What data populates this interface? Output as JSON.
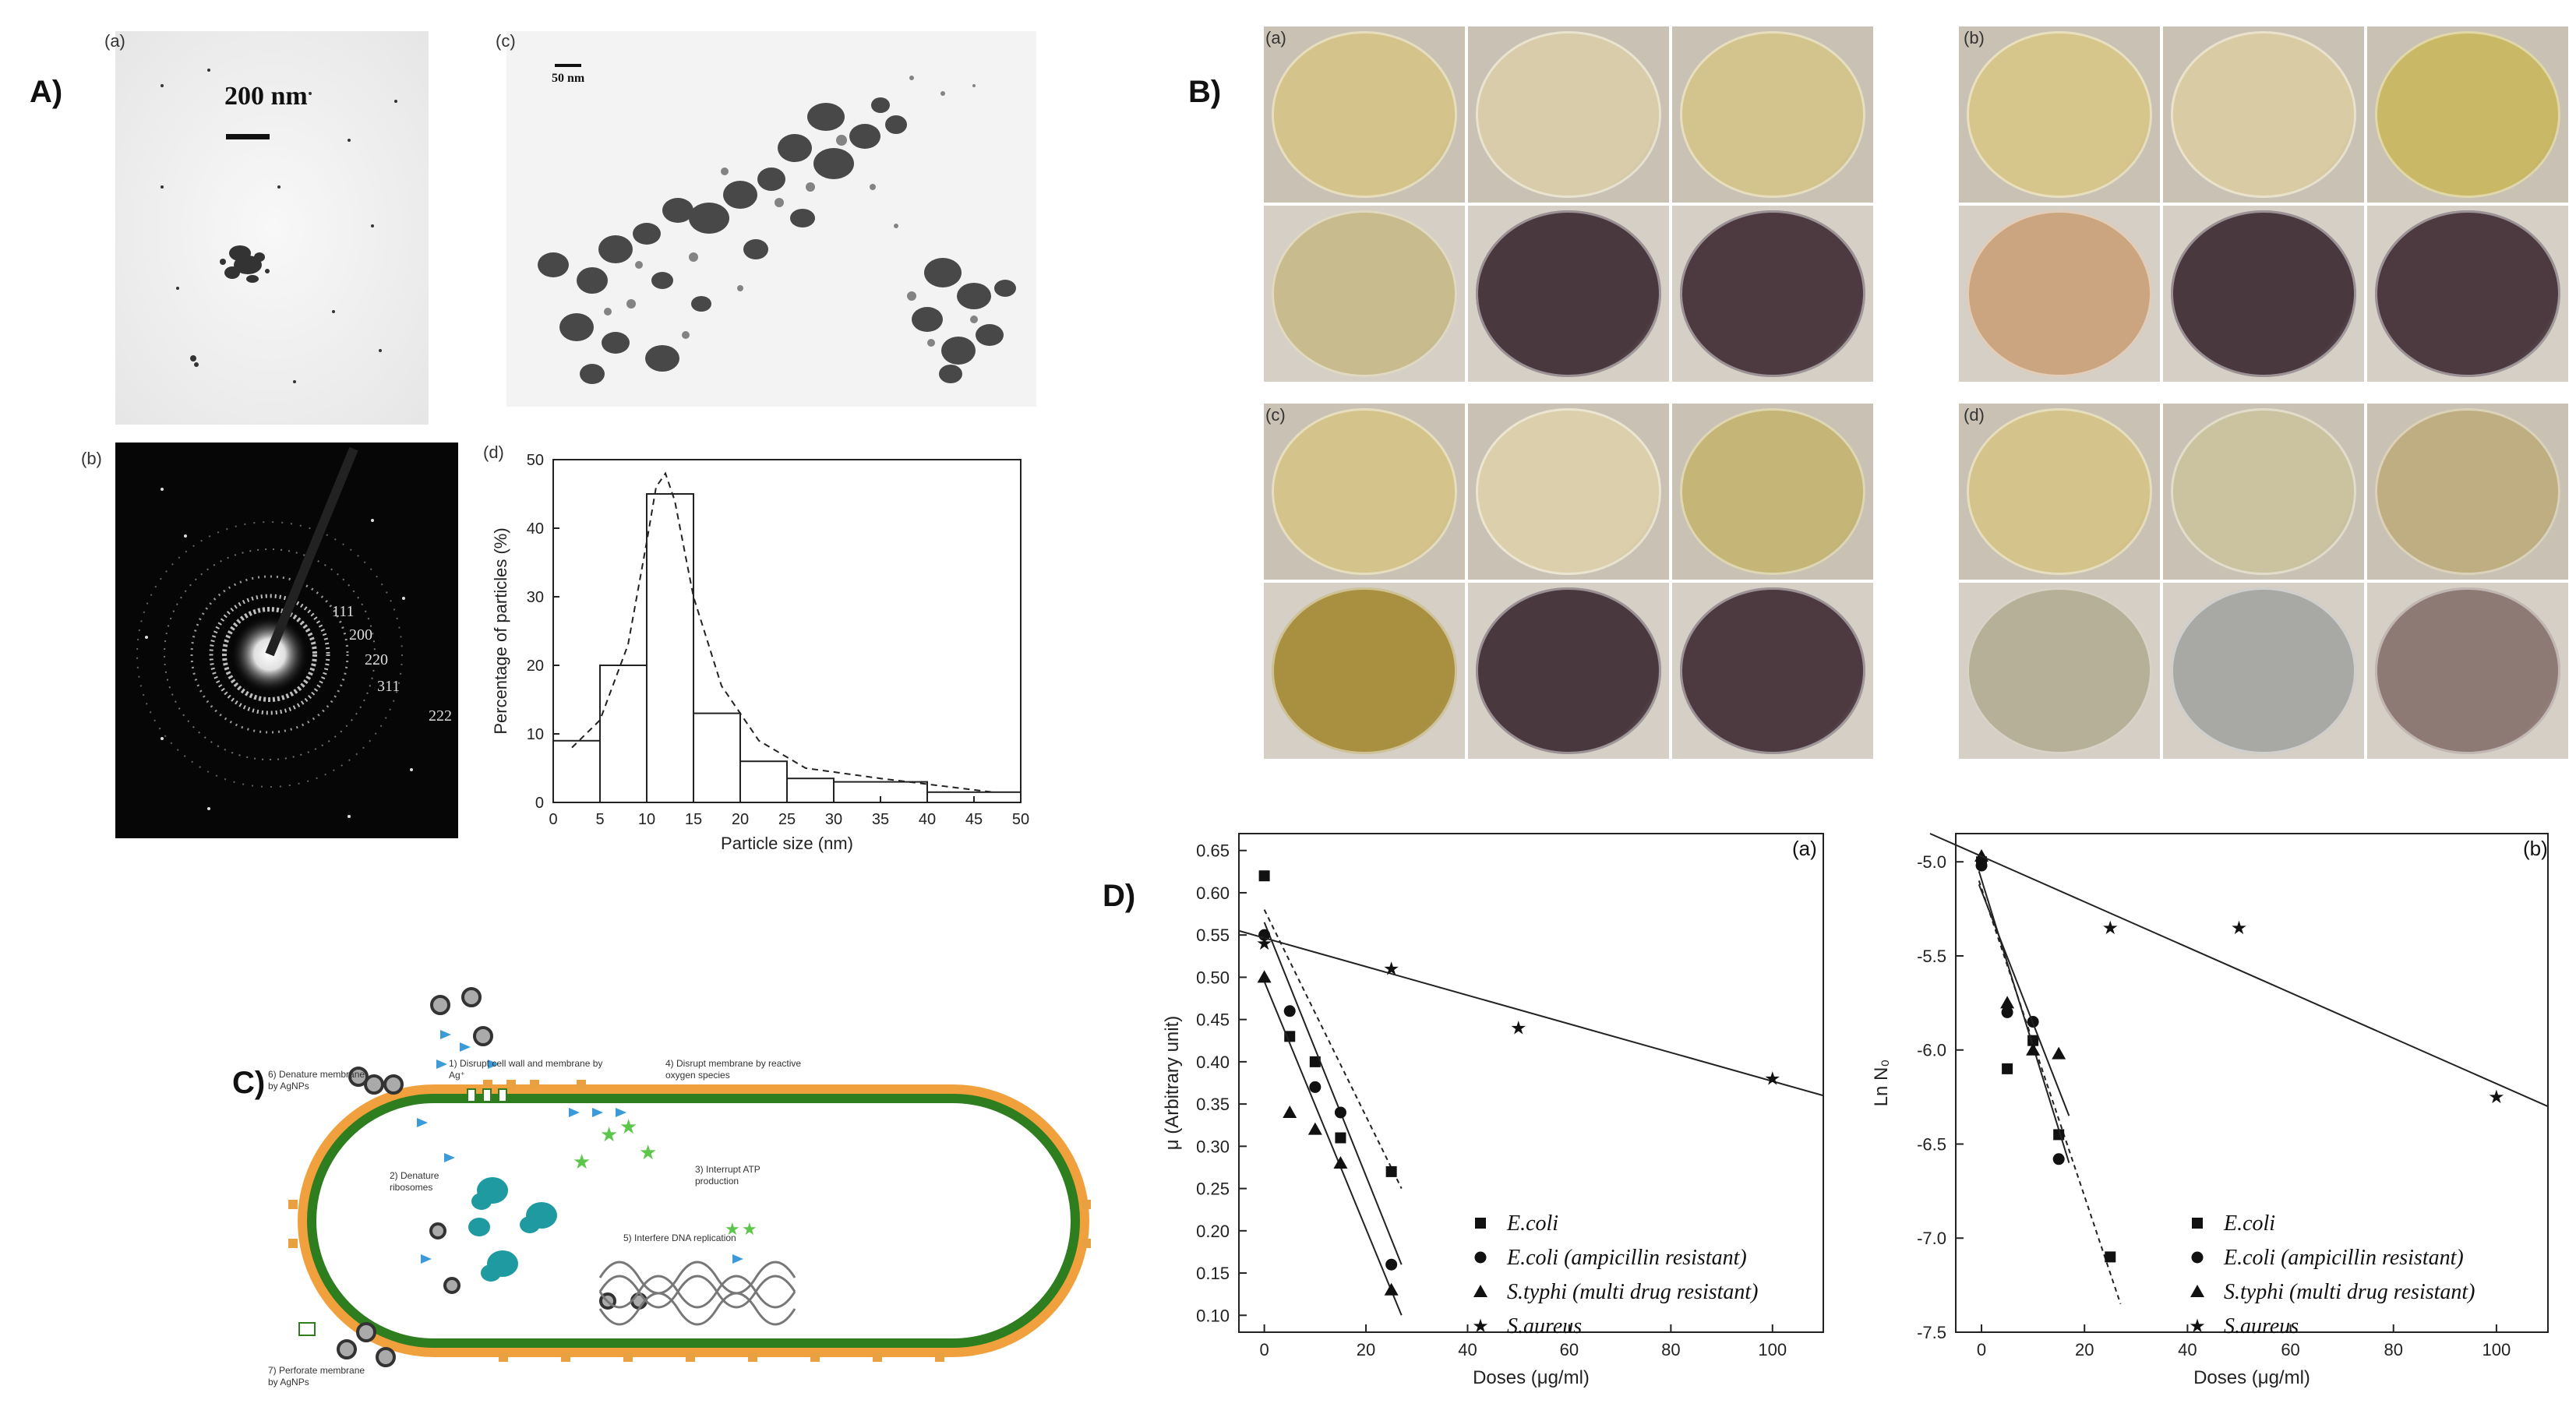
{
  "panels": {
    "A": {
      "letter": "A)",
      "a": {
        "label": "(a)",
        "scalebar": "200 nm"
      },
      "b": {
        "label": "(b)",
        "rings": [
          "111",
          "200",
          "220",
          "311",
          "222"
        ]
      },
      "c": {
        "label": "(c)",
        "scalebar": "50 nm"
      },
      "d": {
        "label": "(d)"
      }
    },
    "B": {
      "letter": "B)",
      "groups": [
        "(a)",
        "(b)",
        "(c)",
        "(d)"
      ]
    },
    "C": {
      "letter": "C)",
      "steps": [
        "1) Disrupt cell wall and membrane by Ag⁺",
        "2) Denature ribosomes",
        "3) Interrupt ATP production",
        "4) Disrupt membrane by reactive oxygen species",
        "5) Interfere DNA replication",
        "6) Denature membrane by AgNPs",
        "7) Perforate membrane by AgNPs"
      ]
    },
    "D": {
      "letter": "D)",
      "a_label": "(a)",
      "b_label": "(b)"
    }
  },
  "legend_D": [
    "E.coli",
    "E.coli (ampicillin resistant)",
    "S.typhi (multi drug resistant)",
    "S.aureus"
  ],
  "chart_data": [
    {
      "type": "bar",
      "id": "A-d",
      "xlabel": "Particle size (nm)",
      "ylabel": "Percentage of particles (%)",
      "xlim": [
        0,
        50
      ],
      "ylim": [
        0,
        50
      ],
      "xticks": [
        0,
        5,
        10,
        15,
        20,
        25,
        30,
        35,
        40,
        45,
        50
      ],
      "yticks": [
        0,
        10,
        20,
        30,
        40,
        50
      ],
      "bins": [
        {
          "from": 0,
          "to": 5,
          "value": 9
        },
        {
          "from": 5,
          "to": 10,
          "value": 20
        },
        {
          "from": 10,
          "to": 15,
          "value": 45
        },
        {
          "from": 15,
          "to": 20,
          "value": 13
        },
        {
          "from": 20,
          "to": 25,
          "value": 6
        },
        {
          "from": 25,
          "to": 30,
          "value": 3.5
        },
        {
          "from": 30,
          "to": 40,
          "value": 3
        },
        {
          "from": 40,
          "to": 50,
          "value": 1.5
        }
      ],
      "fit_curve": {
        "x": [
          2,
          5,
          8,
          10,
          11,
          12,
          13,
          15,
          18,
          22,
          27,
          35,
          47
        ],
        "y": [
          8,
          12,
          23,
          38,
          46,
          48,
          44,
          30,
          17,
          9,
          5,
          3.5,
          1.5
        ]
      }
    },
    {
      "type": "scatter",
      "id": "D-a",
      "xlabel": "Doses (μg/ml)",
      "ylabel": "μ (Arbitrary unit)",
      "xlim": [
        -5,
        110
      ],
      "ylim": [
        0.08,
        0.67
      ],
      "xticks": [
        0,
        20,
        40,
        60,
        80,
        100
      ],
      "yticks": [
        0.1,
        0.15,
        0.2,
        0.25,
        0.3,
        0.35,
        0.4,
        0.45,
        0.5,
        0.55,
        0.6,
        0.65
      ],
      "series": [
        {
          "name": "E.coli",
          "marker": "square",
          "x": [
            0,
            5,
            10,
            15,
            25
          ],
          "y": [
            0.62,
            0.43,
            0.4,
            0.31,
            0.27
          ],
          "fit": [
            [
              0,
              0.58
            ],
            [
              27,
              0.25
            ]
          ],
          "fit_style": "dashed"
        },
        {
          "name": "E.coli (ampicillin resistant)",
          "marker": "circle",
          "x": [
            0,
            5,
            10,
            15,
            25
          ],
          "y": [
            0.55,
            0.46,
            0.37,
            0.34,
            0.16
          ],
          "fit": [
            [
              0,
              0.565
            ],
            [
              27,
              0.16
            ]
          ],
          "fit_style": "solid"
        },
        {
          "name": "S.typhi (multi drug resistant)",
          "marker": "triangle",
          "x": [
            0,
            5,
            10,
            15,
            25
          ],
          "y": [
            0.5,
            0.34,
            0.32,
            0.28,
            0.13
          ],
          "fit": [
            [
              0,
              0.495
            ],
            [
              27,
              0.1
            ]
          ],
          "fit_style": "solid"
        },
        {
          "name": "S.aureus",
          "marker": "star",
          "x": [
            0,
            25,
            50,
            100
          ],
          "y": [
            0.54,
            0.51,
            0.44,
            0.38
          ],
          "fit": [
            [
              -5,
              0.555
            ],
            [
              110,
              0.36
            ]
          ],
          "fit_style": "solid"
        }
      ]
    },
    {
      "type": "scatter",
      "id": "D-b",
      "xlabel": "Doses (μg/ml)",
      "ylabel": "Ln N₀",
      "xlim": [
        -5,
        110
      ],
      "ylim": [
        -7.5,
        -4.85
      ],
      "xticks": [
        0,
        20,
        40,
        60,
        80,
        100
      ],
      "yticks": [
        -5.0,
        -5.5,
        -6.0,
        -6.5,
        -7.0,
        -7.5
      ],
      "series": [
        {
          "name": "E.coli",
          "marker": "square",
          "x": [
            0,
            5,
            10,
            15,
            25
          ],
          "y": [
            -5.0,
            -6.1,
            -5.95,
            -6.45,
            -7.1
          ],
          "fit": [
            [
              -0.5,
              -5.1
            ],
            [
              27,
              -7.35
            ]
          ],
          "fit_style": "dashed"
        },
        {
          "name": "E.coli (ampicillin resistant)",
          "marker": "circle",
          "x": [
            0,
            5,
            10,
            15
          ],
          "y": [
            -5.02,
            -5.8,
            -5.85,
            -6.58
          ],
          "fit": [
            [
              -0.5,
              -5.05
            ],
            [
              17,
              -6.6
            ]
          ],
          "fit_style": "solid"
        },
        {
          "name": "S.typhi (multi drug resistant)",
          "marker": "triangle",
          "x": [
            0,
            5,
            10,
            15
          ],
          "y": [
            -4.97,
            -5.75,
            -6.0,
            -6.02
          ],
          "fit": [
            [
              -0.5,
              -5.12
            ],
            [
              17,
              -6.35
            ]
          ],
          "fit_style": "solid"
        },
        {
          "name": "S.aureus",
          "marker": "star",
          "x": [
            25,
            50,
            100
          ],
          "y": [
            -5.35,
            -5.35,
            -6.25
          ],
          "fit": [
            [
              -10,
              -4.85
            ],
            [
              110,
              -6.3
            ]
          ],
          "fit_style": "solid"
        }
      ]
    }
  ]
}
